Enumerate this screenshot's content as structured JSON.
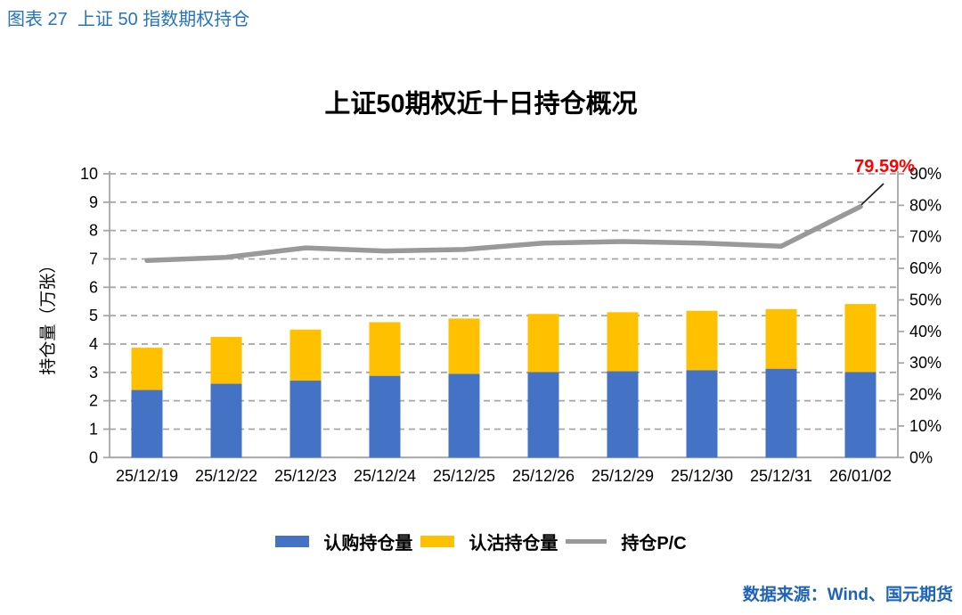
{
  "page": {
    "caption": "图表 27  上证 50 指数期权持仓",
    "source": "数据来源：Wind、国元期货"
  },
  "chart": {
    "title": "上证50期权近十日持仓概况",
    "legend": [
      {
        "label": "认购持仓量",
        "color": "#4472C4",
        "type": "rect"
      },
      {
        "label": "认沽持仓量",
        "color": "#FFC000",
        "type": "rect"
      },
      {
        "label": "持仓P/C",
        "color": "#999999",
        "type": "line"
      }
    ]
  },
  "chart_data": {
    "type": "bar",
    "subtype": "stacked-bars-with-line",
    "title": "上证50期权近十日持仓概况",
    "categories": [
      "25/12/19",
      "25/12/22",
      "25/12/23",
      "25/12/24",
      "25/12/25",
      "25/12/26",
      "25/12/29",
      "25/12/30",
      "25/12/31",
      "26/01/02"
    ],
    "series": [
      {
        "name": "认购持仓量",
        "type": "bar",
        "stacked": true,
        "axis": "left",
        "color": "#4472C4",
        "values": [
          2.38,
          2.6,
          2.71,
          2.88,
          2.95,
          3.01,
          3.04,
          3.08,
          3.13,
          3.01
        ]
      },
      {
        "name": "认沽持仓量",
        "type": "bar",
        "stacked": true,
        "axis": "left",
        "color": "#FFC000",
        "values": [
          1.49,
          1.65,
          1.8,
          1.89,
          1.95,
          2.05,
          2.08,
          2.09,
          2.1,
          2.4
        ]
      },
      {
        "name": "持仓P/C",
        "type": "line",
        "axis": "right",
        "color": "#999999",
        "values_pct": [
          62.5,
          63.5,
          66.5,
          65.5,
          66.0,
          68.0,
          68.5,
          68.0,
          67.0,
          79.59
        ]
      }
    ],
    "ylabel_left": "持仓量（万张）",
    "ylim_left": [
      0,
      10
    ],
    "yticks_left": [
      "0",
      "1",
      "2",
      "3",
      "4",
      "5",
      "6",
      "7",
      "8",
      "9",
      "10"
    ],
    "ylim_right_pct": [
      0,
      90
    ],
    "yticks_right": [
      "0%",
      "10%",
      "20%",
      "30%",
      "40%",
      "50%",
      "60%",
      "70%",
      "80%",
      "90%"
    ],
    "grid": "horizontal-dashed",
    "legend_position": "bottom",
    "annotation": {
      "text": "79.59%",
      "color": "#FF0000",
      "applies_to": "last line point"
    },
    "colors": {
      "grid": "#A6A6A6",
      "axis": "#A6A6A6",
      "tick_label": "#000000",
      "leader_line": "#1a1a1a"
    }
  }
}
